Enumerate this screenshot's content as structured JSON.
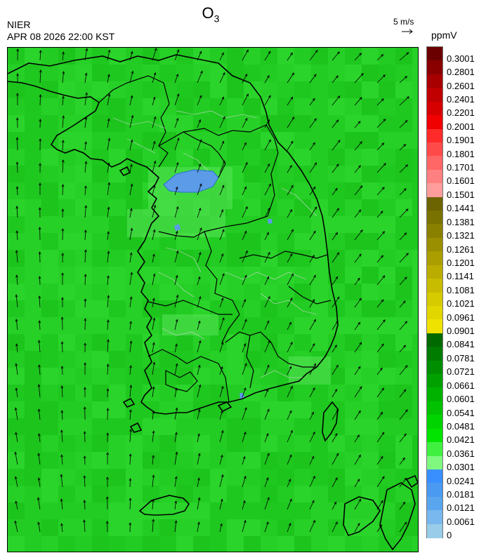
{
  "header": {
    "species": "O",
    "species_sub": "3",
    "org": "NIER",
    "datetime": "APR 08 2026 22:00 KST",
    "vector_scale": "5 m/s",
    "unit": "ppmV"
  },
  "legend": {
    "labels": [
      "0.3001",
      "0.2801",
      "0.2601",
      "0.2401",
      "0.2201",
      "0.2001",
      "0.1901",
      "0.1801",
      "0.1701",
      "0.1601",
      "0.1501",
      "0.1441",
      "0.1381",
      "0.1321",
      "0.1261",
      "0.1201",
      "0.1141",
      "0.1081",
      "0.1021",
      "0.0961",
      "0.0901",
      "0.0841",
      "0.0781",
      "0.0721",
      "0.0661",
      "0.0601",
      "0.0541",
      "0.0481",
      "0.0421",
      "0.0361",
      "0.0301",
      "0.0241",
      "0.0181",
      "0.0121",
      "0.0061",
      "0"
    ],
    "colors": [
      "#6b0000",
      "#8a0000",
      "#a80000",
      "#c00000",
      "#d60000",
      "#f00000",
      "#ff2a2a",
      "#ff4a4a",
      "#ff6666",
      "#ff8080",
      "#ff9c9c",
      "#6b6400",
      "#7a7200",
      "#8a8000",
      "#9a8f00",
      "#aa9e00",
      "#baad00",
      "#c8bc00",
      "#d6ca00",
      "#e2d600",
      "#f0e200",
      "#006a00",
      "#007c00",
      "#008e00",
      "#00a000",
      "#00b200",
      "#00c200",
      "#00d400",
      "#00e400",
      "#40f040",
      "#80f880",
      "#3a8fff",
      "#4a9af2",
      "#5aa6ee",
      "#78b8ee",
      "#98cce8"
    ]
  },
  "map": {
    "base_color": "#22cc22",
    "coast_color": "#000000",
    "boundary_color": "#cccccc",
    "low_ozone_color": "#5b9be8"
  }
}
